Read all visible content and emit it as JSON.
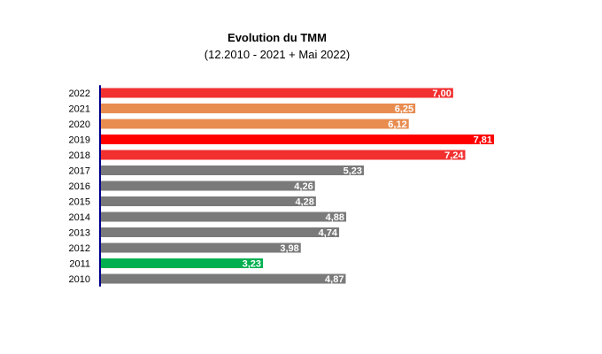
{
  "chart_data": {
    "type": "bar",
    "orientation": "horizontal",
    "title": "Evolution du TMM",
    "subtitle": "(12.2010 - 2021 + Mai 2022)",
    "categories": [
      "2022",
      "2021",
      "2020",
      "2019",
      "2018",
      "2017",
      "2016",
      "2015",
      "2014",
      "2013",
      "2012",
      "2011",
      "2010"
    ],
    "values": [
      7.0,
      6.25,
      6.12,
      7.81,
      7.24,
      5.23,
      4.26,
      4.28,
      4.88,
      4.74,
      3.98,
      3.23,
      4.87
    ],
    "value_labels": [
      "7,00",
      "6,25",
      "6,12",
      "7,81",
      "7,24",
      "5,23",
      "4,26",
      "4,28",
      "4,88",
      "4,74",
      "3,98",
      "3,23",
      "4,87"
    ],
    "colors": [
      "#f23030",
      "#e88c50",
      "#e88c50",
      "#ff0000",
      "#f23030",
      "#7a7a7a",
      "#7a7a7a",
      "#7a7a7a",
      "#7a7a7a",
      "#7a7a7a",
      "#7a7a7a",
      "#00b050",
      "#7a7a7a"
    ],
    "axis_color": "#00008b",
    "xlim": [
      0,
      8
    ],
    "grid": false,
    "legend": "none"
  }
}
